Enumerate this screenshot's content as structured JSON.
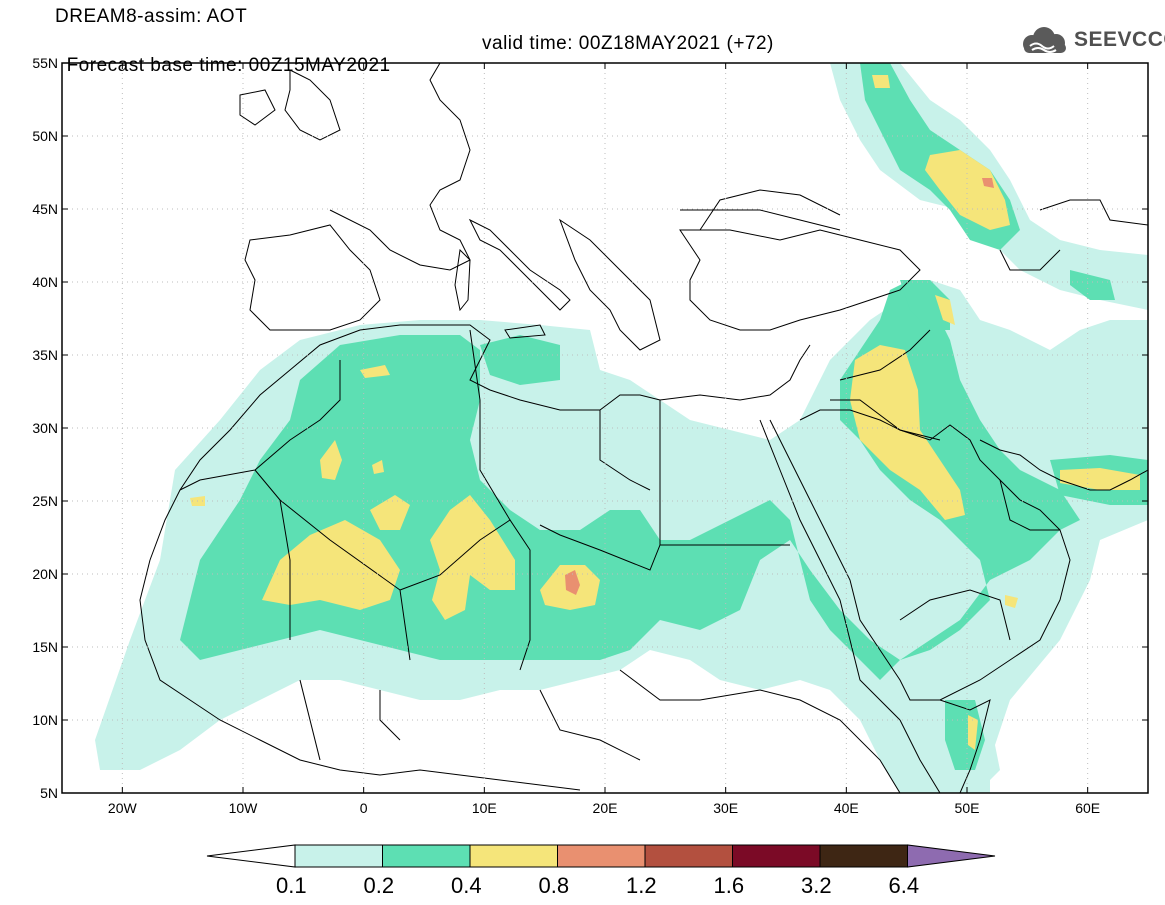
{
  "header": {
    "line1": "DREAM8-assim: AOT",
    "line2_left": "Forecast base time: 00Z15MAY2021",
    "line2_right": "valid time: 00Z18MAY2021 (+72)"
  },
  "logo": {
    "text": "SEEVCCC",
    "icon": "cloud-icon"
  },
  "map": {
    "lon_range": [
      -25,
      65
    ],
    "lat_range": [
      5,
      55
    ],
    "x_ticks": [
      "20W",
      "10W",
      "0",
      "10E",
      "20E",
      "30E",
      "40E",
      "50E",
      "60E"
    ],
    "y_ticks": [
      "55N",
      "50N",
      "45N",
      "40N",
      "35N",
      "30N",
      "25N",
      "20N",
      "15N",
      "10N",
      "5N"
    ]
  },
  "colorbar": {
    "labels": [
      "0.1",
      "0.2",
      "0.4",
      "0.8",
      "1.2",
      "1.6",
      "3.2",
      "6.4"
    ],
    "colors": [
      "#ffffff",
      "#c8f2ea",
      "#5ddfb3",
      "#f5e57a",
      "#e99070",
      "#b3503f",
      "#7b0a26",
      "#3e2614",
      "#8e6bb0"
    ]
  }
}
